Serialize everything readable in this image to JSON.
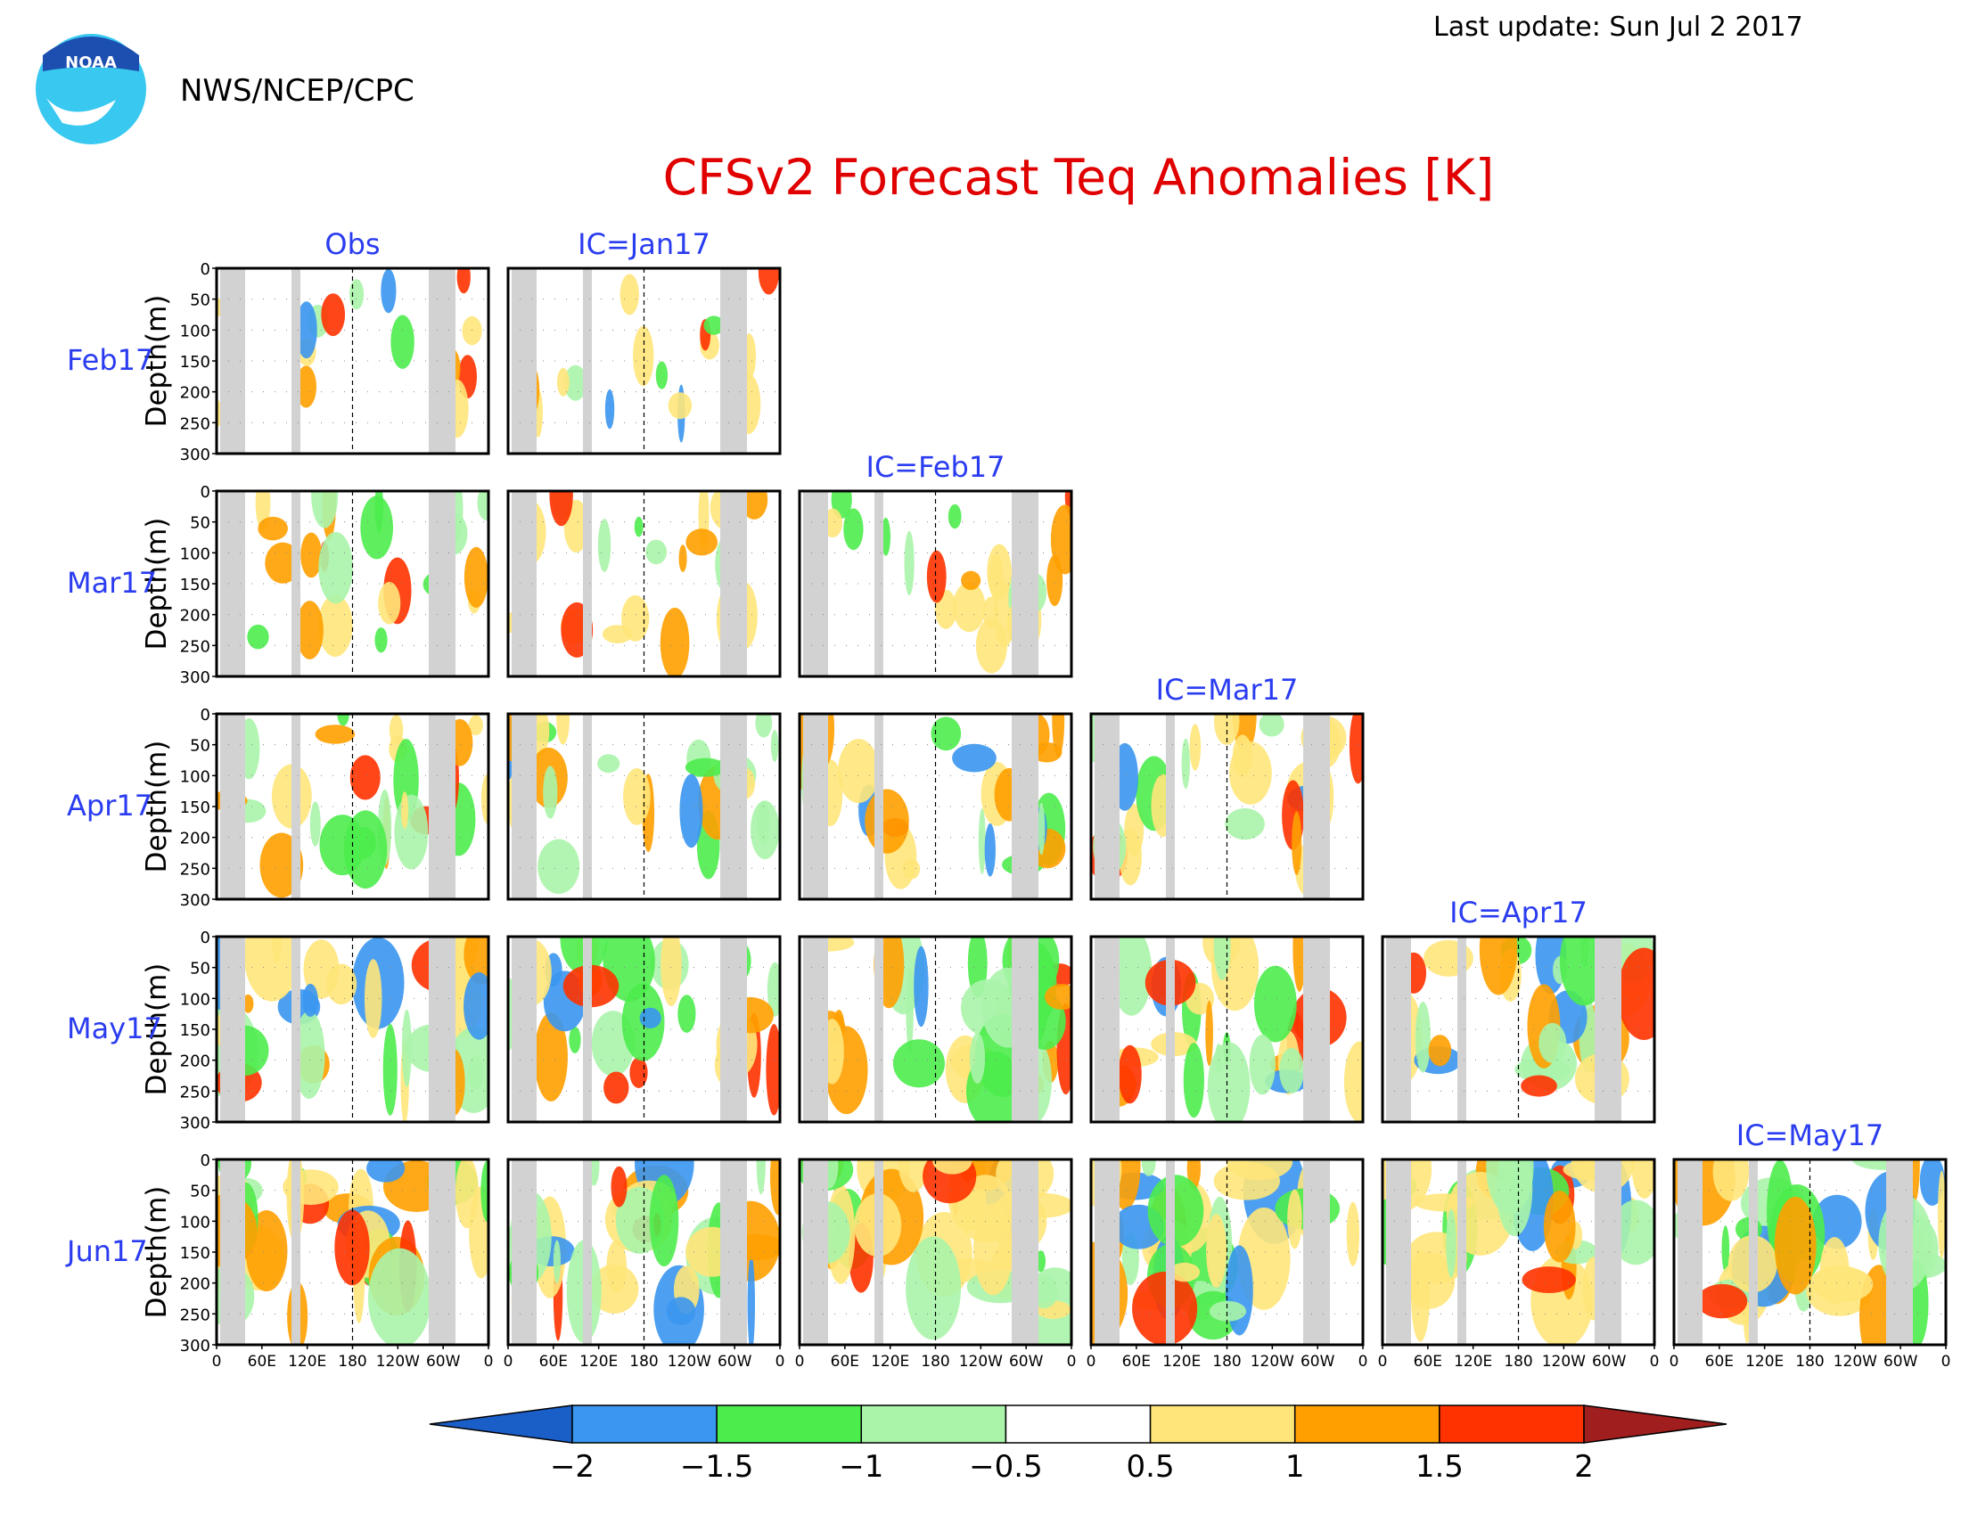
{
  "header": {
    "agency": "NWS/NCEP/CPC",
    "logo_text": "NOAA",
    "last_update": "Last update: Sun Jul 2 2017",
    "title": "CFSv2 Forecast Teq Anomalies [K]"
  },
  "colors": {
    "title": "#e00000",
    "column_label": "#2a3cf0",
    "row_label": "#2a3cf0",
    "land_mask": "#d2d2d2",
    "frame": "#000000"
  },
  "chart_data": {
    "type": "heatmap",
    "ylabel": "Depth(m)",
    "y_ticks": [
      0,
      50,
      100,
      150,
      200,
      250,
      300
    ],
    "x_ticks": [
      "0",
      "60E",
      "120E",
      "180",
      "120W",
      "60W",
      "0"
    ],
    "ylim": [
      300,
      0
    ],
    "row_labels": [
      "Feb17",
      "Mar17",
      "Apr17",
      "May17",
      "Jun17"
    ],
    "column_labels": [
      "Obs",
      "IC=Jan17",
      "IC=Feb17",
      "IC=Mar17",
      "IC=Apr17",
      "IC=May17"
    ],
    "panels_per_row": [
      2,
      3,
      4,
      5,
      6
    ],
    "colorbar": {
      "levels": [
        "-2",
        "-1.5",
        "-1",
        "-0.5",
        "0.5",
        "1",
        "1.5",
        "2"
      ],
      "colors": [
        "#1a5ec8",
        "#3a96f0",
        "#4cec4c",
        "#aaf4aa",
        "#ffffff",
        "#ffe57a",
        "#ffa000",
        "#ff3200",
        "#a01e1e"
      ]
    }
  }
}
